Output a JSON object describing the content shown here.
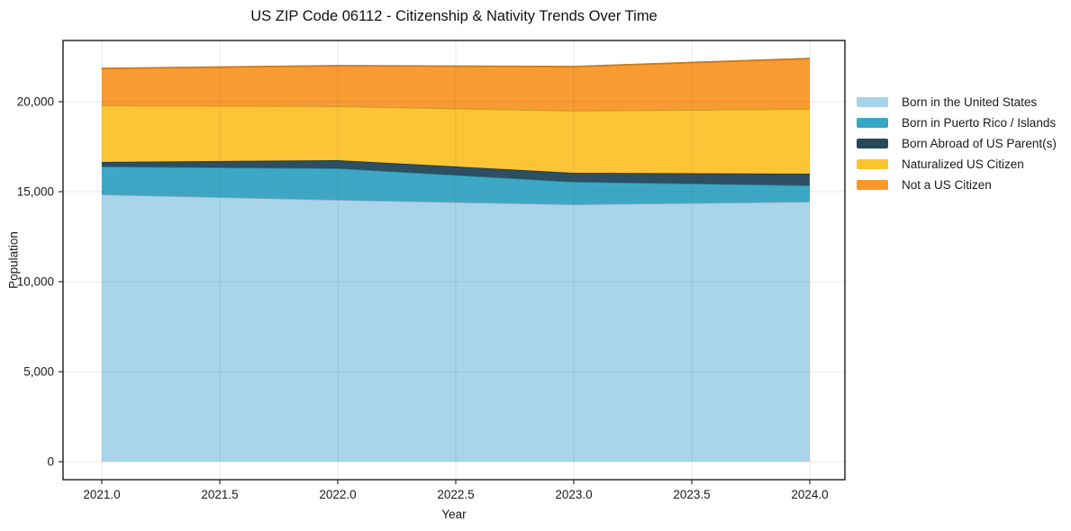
{
  "chart_data": {
    "type": "area",
    "stacked": true,
    "title": "US ZIP Code 06112 - Citizenship & Nativity Trends Over Time",
    "xlabel": "Year",
    "ylabel": "Population",
    "x": [
      2021,
      2022,
      2023,
      2024
    ],
    "series": [
      {
        "name": "Born in the United States",
        "color": "#A6D3E8",
        "values": [
          14850,
          14550,
          14300,
          14450
        ]
      },
      {
        "name": "Born in Puerto Rico / Islands",
        "color": "#36A5C3",
        "values": [
          1550,
          1750,
          1250,
          900
        ]
      },
      {
        "name": "Born Abroad of US Parent(s)",
        "color": "#27495C",
        "values": [
          250,
          450,
          500,
          650
        ]
      },
      {
        "name": "Naturalized US Citizen",
        "color": "#FDC32E",
        "values": [
          3150,
          3000,
          3450,
          3600
        ]
      },
      {
        "name": "Not a US Citizen",
        "color": "#F8982B",
        "values": [
          2050,
          2250,
          2450,
          2800
        ]
      }
    ],
    "stack_totals": [
      21850,
      22000,
      21950,
      22400
    ],
    "x_ticks": [
      2021.0,
      2021.5,
      2022.0,
      2022.5,
      2023.0,
      2023.5,
      2024.0
    ],
    "x_tick_labels": [
      "2021.0",
      "2021.5",
      "2022.0",
      "2022.5",
      "2023.0",
      "2023.5",
      "2024.0"
    ],
    "y_ticks": [
      0,
      5000,
      10000,
      15000,
      20000
    ],
    "y_tick_labels": [
      "0",
      "5,000",
      "10,000",
      "15,000",
      "20,000"
    ],
    "xlim": [
      2020.836,
      2024.149
    ],
    "ylim": [
      -1000,
      23400
    ],
    "grid": true,
    "legend_position": "right",
    "colors": {
      "spine": "#2b2b2b",
      "grid": "rgba(90,90,90,0.14)",
      "text": "#1a1a1a"
    }
  }
}
